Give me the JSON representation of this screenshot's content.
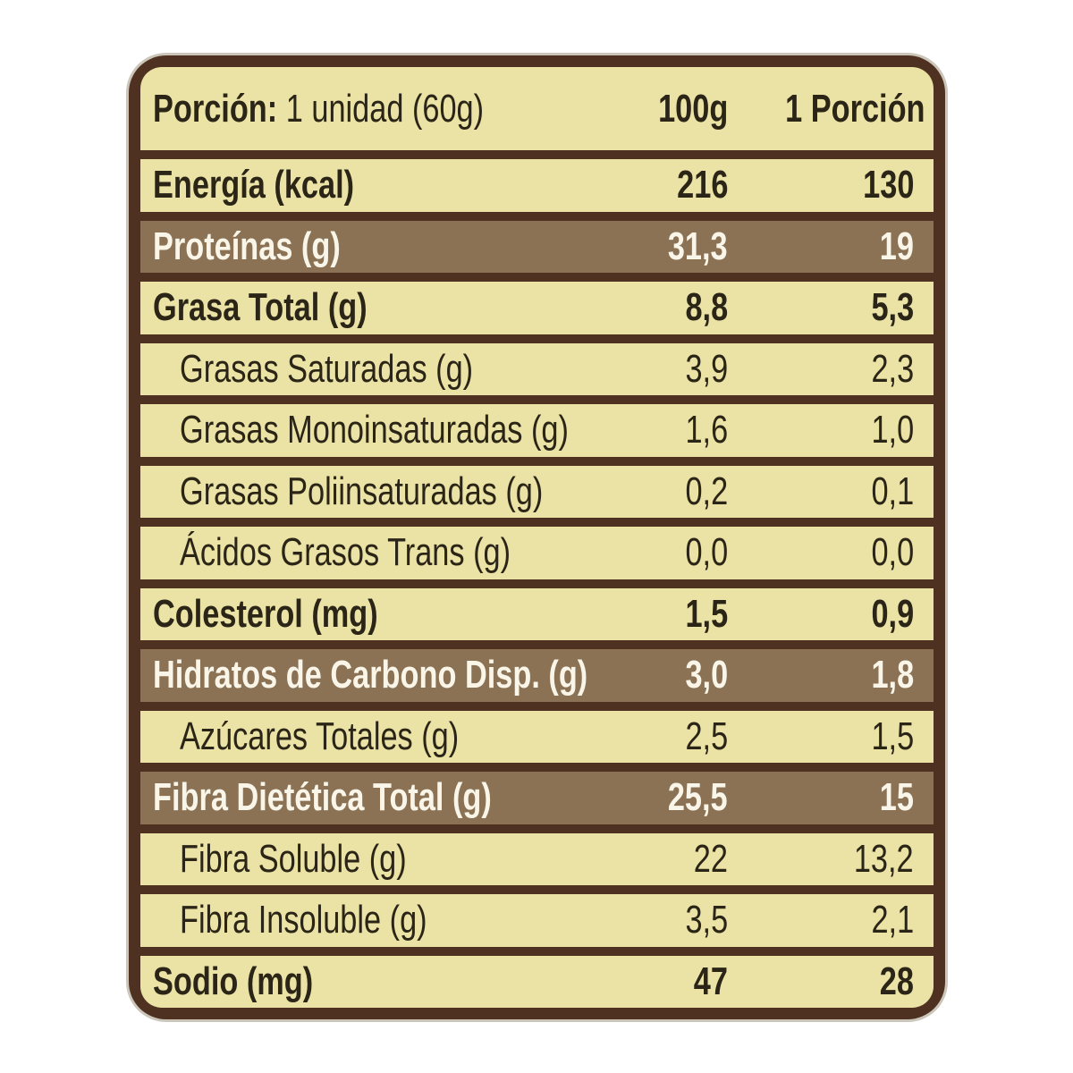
{
  "colors": {
    "border_brown": "#4e3120",
    "row_bg": "#ebe2a5",
    "highlight_bg": "#8b7254",
    "text_dark": "#2b2517",
    "text_light": "#f9f5e8"
  },
  "header": {
    "portion_label": "Porción:",
    "portion_value": " 1 unidad (60g)",
    "col_100g": "100g",
    "col_portion": "1 Porción"
  },
  "rows": [
    {
      "label": "Energía (kcal)",
      "per100": "216",
      "portion": "130",
      "bold": true,
      "highlight": false,
      "indent": false
    },
    {
      "label": "Proteínas (g)",
      "per100": "31,3",
      "portion": "19",
      "bold": true,
      "highlight": true,
      "indent": false
    },
    {
      "label": "Grasa Total (g)",
      "per100": "8,8",
      "portion": "5,3",
      "bold": true,
      "highlight": false,
      "indent": false
    },
    {
      "label": "Grasas Saturadas (g)",
      "per100": "3,9",
      "portion": "2,3",
      "bold": false,
      "highlight": false,
      "indent": true
    },
    {
      "label": "Grasas Monoinsaturadas (g)",
      "per100": "1,6",
      "portion": "1,0",
      "bold": false,
      "highlight": false,
      "indent": true
    },
    {
      "label": "Grasas Poliinsaturadas (g)",
      "per100": "0,2",
      "portion": "0,1",
      "bold": false,
      "highlight": false,
      "indent": true
    },
    {
      "label": "Ácidos Grasos Trans (g)",
      "per100": "0,0",
      "portion": "0,0",
      "bold": false,
      "highlight": false,
      "indent": true
    },
    {
      "label": "Colesterol (mg)",
      "per100": "1,5",
      "portion": "0,9",
      "bold": true,
      "highlight": false,
      "indent": false
    },
    {
      "label": "Hidratos de Carbono Disp. (g)",
      "per100": "3,0",
      "portion": "1,8",
      "bold": true,
      "highlight": true,
      "indent": false
    },
    {
      "label": "Azúcares Totales (g)",
      "per100": "2,5",
      "portion": "1,5",
      "bold": false,
      "highlight": false,
      "indent": true
    },
    {
      "label": "Fibra Dietética Total (g)",
      "per100": "25,5",
      "portion": "15",
      "bold": true,
      "highlight": true,
      "indent": false
    },
    {
      "label": "Fibra Soluble (g)",
      "per100": "22",
      "portion": "13,2",
      "bold": false,
      "highlight": false,
      "indent": true
    },
    {
      "label": "Fibra Insoluble (g)",
      "per100": "3,5",
      "portion": "2,1",
      "bold": false,
      "highlight": false,
      "indent": true
    },
    {
      "label": "Sodio (mg)",
      "per100": "47",
      "portion": "28",
      "bold": true,
      "highlight": false,
      "indent": false
    }
  ]
}
